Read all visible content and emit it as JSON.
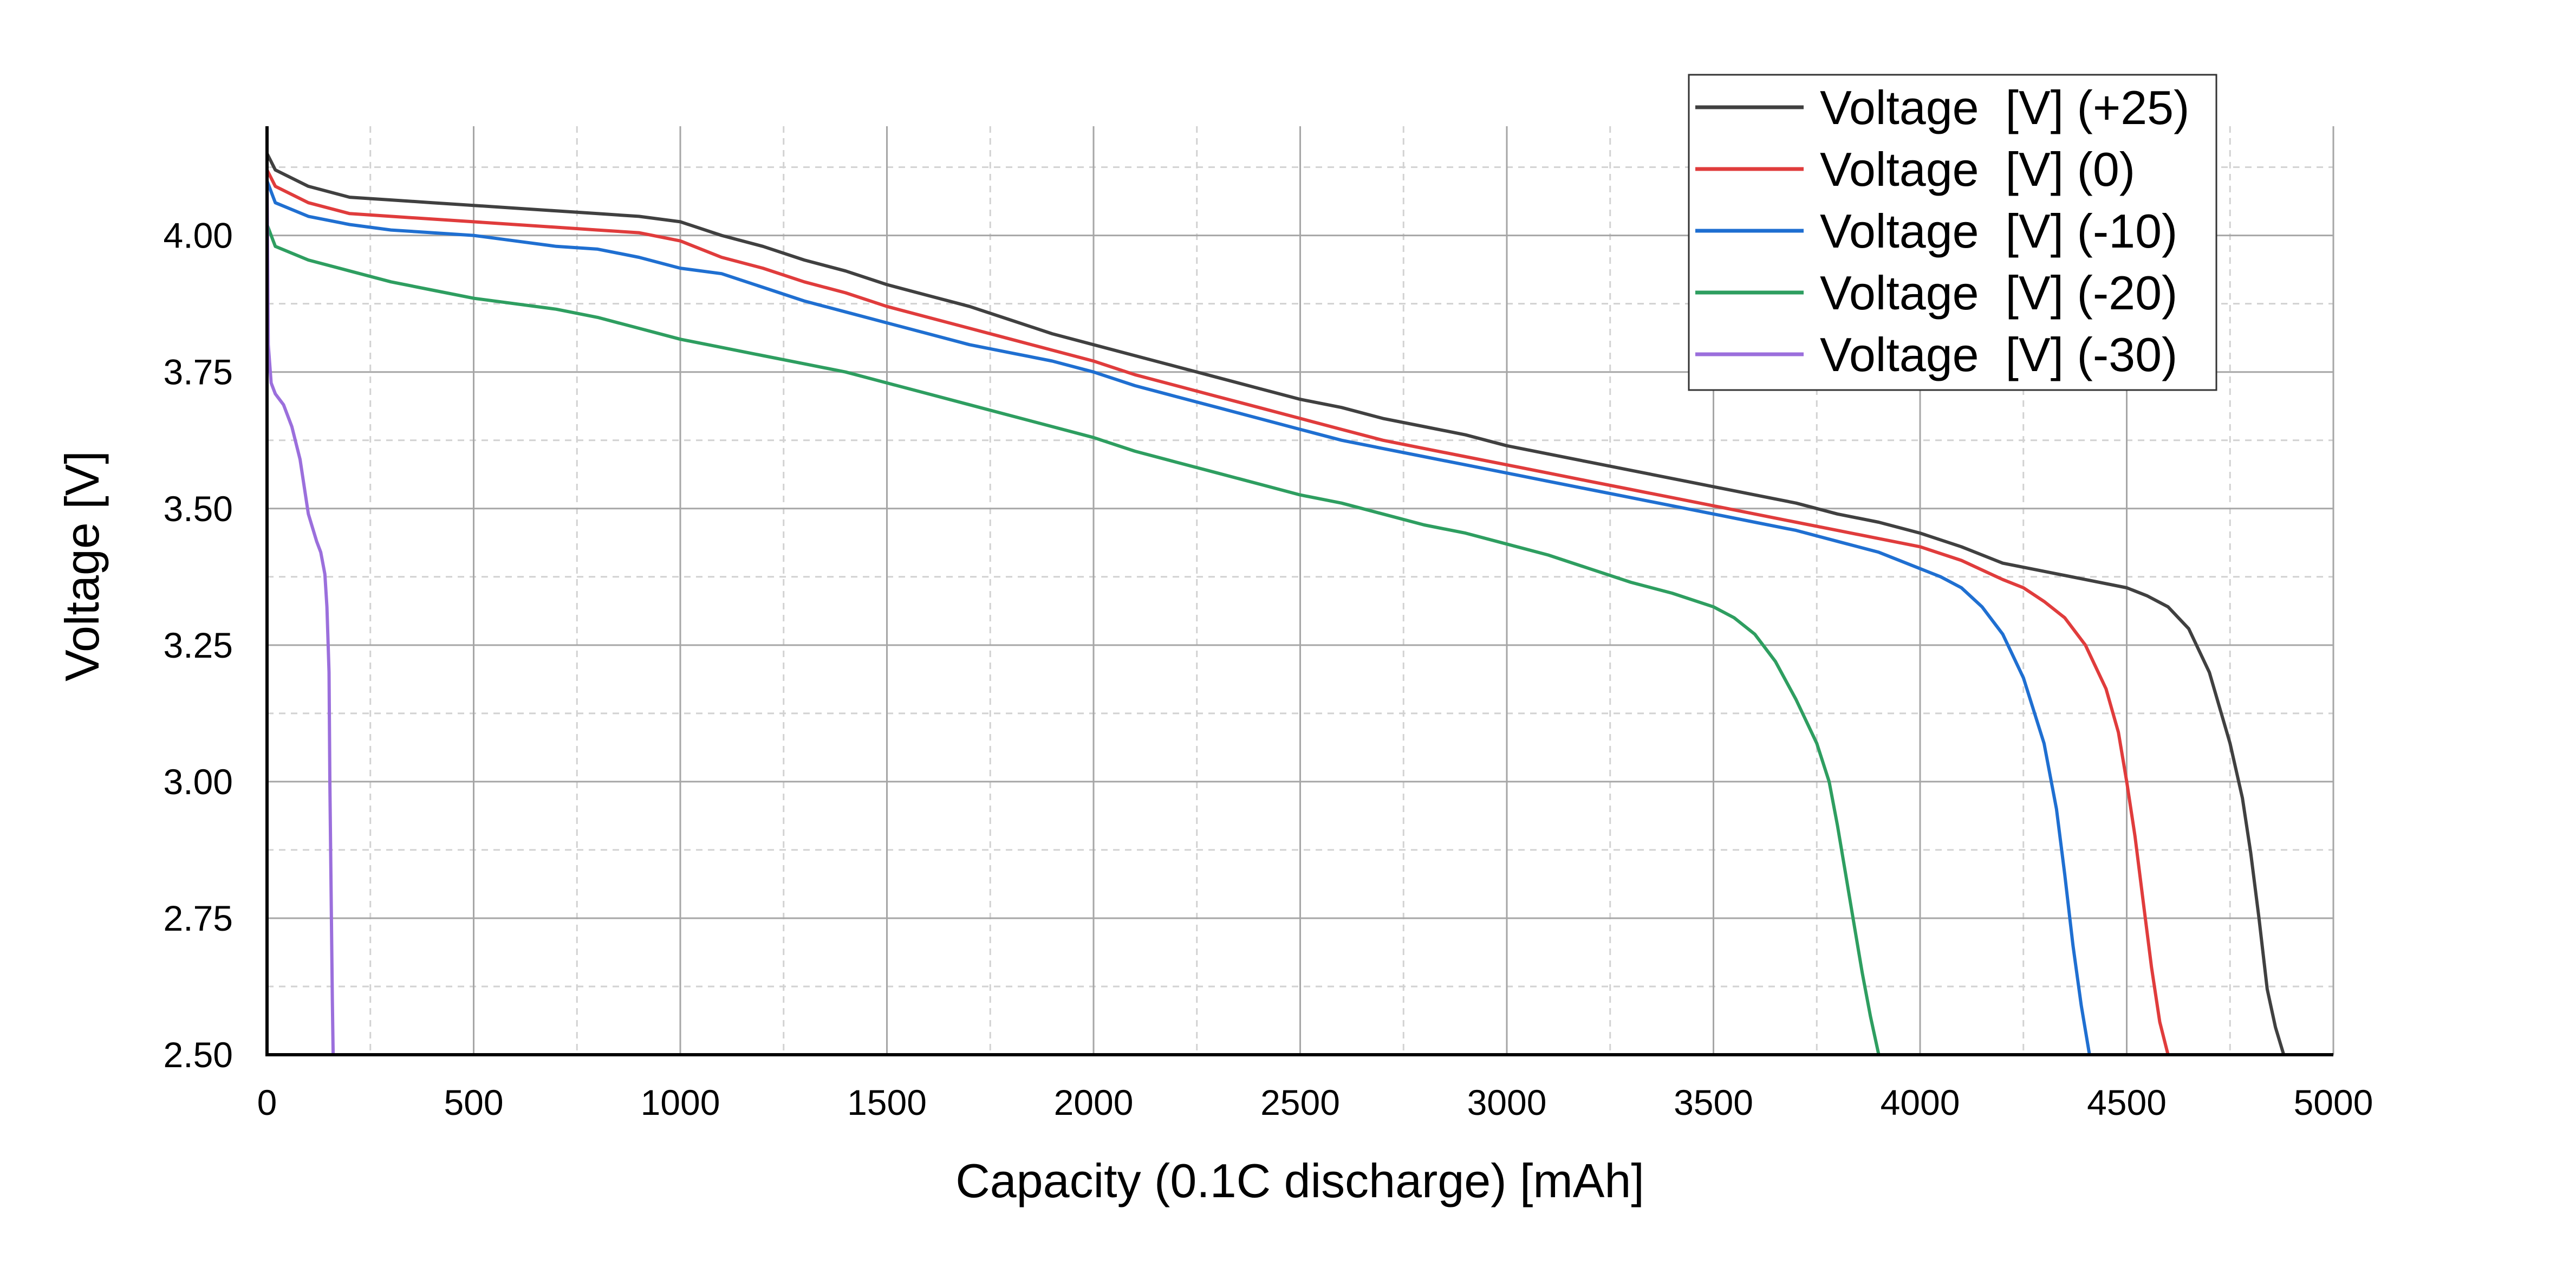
{
  "chart_data": {
    "type": "line",
    "title": "",
    "xlabel": "Capacity (0.1C discharge) [mAh]",
    "ylabel": "Voltage [V]",
    "xlim": [
      0,
      5000
    ],
    "ylim": [
      2.5,
      4.2
    ],
    "x_ticks": [
      0,
      500,
      1000,
      1500,
      2000,
      2500,
      3000,
      3500,
      4000,
      4500,
      5000
    ],
    "x_tick_labels": [
      "0",
      "500",
      "1000",
      "1500",
      "2000",
      "2500",
      "3000",
      "3500",
      "4000",
      "4500",
      "5000"
    ],
    "y_ticks": [
      2.5,
      2.75,
      3.0,
      3.25,
      3.5,
      3.75,
      4.0
    ],
    "y_tick_labels": [
      "2.50",
      "2.75",
      "3.00",
      "3.25",
      "3.50",
      "3.75",
      "4.00"
    ],
    "grid": "major solid, minor dashed",
    "legend_position": "top-right",
    "series": [
      {
        "name": "Voltage  [V] (+25)",
        "color": "#404040",
        "x": [
          0,
          20,
          100,
          200,
          300,
          400,
          500,
          600,
          700,
          800,
          900,
          1000,
          1100,
          1200,
          1300,
          1400,
          1500,
          1600,
          1700,
          1800,
          1900,
          2000,
          2100,
          2200,
          2300,
          2400,
          2500,
          2600,
          2700,
          2800,
          2900,
          3000,
          3100,
          3200,
          3300,
          3400,
          3500,
          3600,
          3700,
          3800,
          3900,
          4000,
          4100,
          4200,
          4300,
          4400,
          4500,
          4550,
          4600,
          4650,
          4700,
          4750,
          4780,
          4800,
          4820,
          4840,
          4860,
          4880
        ],
        "y": [
          4.15,
          4.12,
          4.09,
          4.07,
          4.065,
          4.06,
          4.055,
          4.05,
          4.045,
          4.04,
          4.035,
          4.025,
          4.0,
          3.98,
          3.955,
          3.935,
          3.91,
          3.89,
          3.87,
          3.845,
          3.82,
          3.8,
          3.78,
          3.76,
          3.74,
          3.72,
          3.7,
          3.685,
          3.665,
          3.65,
          3.635,
          3.615,
          3.6,
          3.585,
          3.57,
          3.555,
          3.54,
          3.525,
          3.51,
          3.49,
          3.475,
          3.455,
          3.43,
          3.4,
          3.385,
          3.37,
          3.355,
          3.34,
          3.32,
          3.28,
          3.2,
          3.07,
          2.97,
          2.87,
          2.75,
          2.62,
          2.55,
          2.5
        ]
      },
      {
        "name": "Voltage  [V] (0)",
        "color": "#e03c3c",
        "x": [
          0,
          20,
          100,
          200,
          300,
          400,
          500,
          600,
          700,
          800,
          900,
          1000,
          1100,
          1200,
          1300,
          1400,
          1500,
          1600,
          1700,
          1800,
          1900,
          2000,
          2100,
          2200,
          2300,
          2400,
          2500,
          2600,
          2700,
          2800,
          2900,
          3000,
          3100,
          3200,
          3300,
          3400,
          3500,
          3600,
          3700,
          3800,
          3900,
          4000,
          4100,
          4200,
          4250,
          4300,
          4350,
          4400,
          4450,
          4480,
          4500,
          4520,
          4540,
          4560,
          4580,
          4600
        ],
        "y": [
          4.12,
          4.09,
          4.06,
          4.04,
          4.035,
          4.03,
          4.025,
          4.02,
          4.015,
          4.01,
          4.005,
          3.99,
          3.96,
          3.94,
          3.915,
          3.895,
          3.87,
          3.85,
          3.83,
          3.81,
          3.79,
          3.77,
          3.745,
          3.725,
          3.705,
          3.685,
          3.665,
          3.645,
          3.625,
          3.61,
          3.595,
          3.58,
          3.565,
          3.55,
          3.535,
          3.52,
          3.505,
          3.49,
          3.475,
          3.46,
          3.445,
          3.43,
          3.405,
          3.37,
          3.355,
          3.33,
          3.3,
          3.25,
          3.17,
          3.09,
          3.0,
          2.9,
          2.78,
          2.66,
          2.56,
          2.5
        ]
      },
      {
        "name": "Voltage  [V] (-10)",
        "color": "#1f6fd1",
        "x": [
          0,
          20,
          100,
          200,
          300,
          400,
          500,
          600,
          700,
          800,
          900,
          1000,
          1100,
          1200,
          1300,
          1400,
          1500,
          1600,
          1700,
          1800,
          1900,
          2000,
          2100,
          2200,
          2300,
          2400,
          2500,
          2600,
          2700,
          2800,
          2900,
          3000,
          3100,
          3200,
          3300,
          3400,
          3500,
          3600,
          3700,
          3800,
          3900,
          4000,
          4050,
          4100,
          4150,
          4200,
          4250,
          4300,
          4330,
          4350,
          4370,
          4390,
          4410
        ],
        "y": [
          4.1,
          4.06,
          4.035,
          4.02,
          4.01,
          4.005,
          4.0,
          3.99,
          3.98,
          3.975,
          3.96,
          3.94,
          3.93,
          3.905,
          3.88,
          3.86,
          3.84,
          3.82,
          3.8,
          3.785,
          3.77,
          3.75,
          3.725,
          3.705,
          3.685,
          3.665,
          3.645,
          3.625,
          3.61,
          3.595,
          3.58,
          3.565,
          3.55,
          3.535,
          3.52,
          3.505,
          3.49,
          3.475,
          3.46,
          3.44,
          3.42,
          3.39,
          3.375,
          3.355,
          3.32,
          3.27,
          3.19,
          3.07,
          2.95,
          2.83,
          2.7,
          2.59,
          2.5
        ]
      },
      {
        "name": "Voltage  [V] (-20)",
        "color": "#2e9e60",
        "x": [
          0,
          20,
          100,
          200,
          300,
          400,
          500,
          600,
          700,
          800,
          900,
          1000,
          1100,
          1200,
          1300,
          1400,
          1500,
          1600,
          1700,
          1800,
          1900,
          2000,
          2100,
          2200,
          2300,
          2400,
          2500,
          2600,
          2700,
          2800,
          2900,
          3000,
          3100,
          3200,
          3300,
          3400,
          3500,
          3550,
          3600,
          3650,
          3700,
          3750,
          3780,
          3800,
          3820,
          3840,
          3860,
          3880,
          3900
        ],
        "y": [
          4.02,
          3.98,
          3.955,
          3.935,
          3.915,
          3.9,
          3.885,
          3.875,
          3.865,
          3.85,
          3.83,
          3.81,
          3.795,
          3.78,
          3.765,
          3.75,
          3.73,
          3.71,
          3.69,
          3.67,
          3.65,
          3.63,
          3.605,
          3.585,
          3.565,
          3.545,
          3.525,
          3.51,
          3.49,
          3.47,
          3.455,
          3.435,
          3.415,
          3.39,
          3.365,
          3.345,
          3.32,
          3.3,
          3.27,
          3.22,
          3.15,
          3.07,
          3.0,
          2.92,
          2.83,
          2.74,
          2.65,
          2.57,
          2.5
        ]
      },
      {
        "name": "Voltage  [V] (-30)",
        "color": "#9b6fdc",
        "x": [
          0,
          3,
          10,
          20,
          40,
          60,
          80,
          100,
          120,
          130,
          140,
          145,
          150,
          152,
          155,
          158,
          160
        ],
        "y": [
          4.12,
          3.8,
          3.73,
          3.71,
          3.69,
          3.65,
          3.59,
          3.49,
          3.44,
          3.42,
          3.38,
          3.32,
          3.2,
          3.0,
          2.8,
          2.6,
          2.5
        ]
      }
    ]
  }
}
